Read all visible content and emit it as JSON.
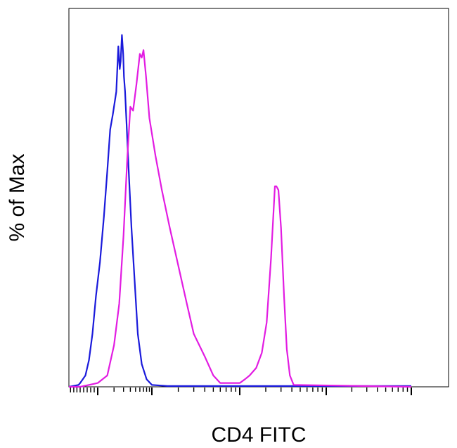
{
  "chart_data": {
    "type": "line",
    "title": "",
    "xlabel": "CD4 FITC",
    "ylabel": "% of Max",
    "x_scale": "log",
    "xlim": [
      -350,
      1000000
    ],
    "ylim": [
      0,
      100
    ],
    "grid": false,
    "legend": "none",
    "series": [
      {
        "color": "#1a1adb",
        "points": [
          [
            -350,
            0
          ],
          [
            -50,
            0.5
          ],
          [
            0,
            1
          ],
          [
            30,
            3
          ],
          [
            50,
            7
          ],
          [
            70,
            14
          ],
          [
            90,
            24
          ],
          [
            110,
            33
          ],
          [
            130,
            45
          ],
          [
            150,
            57
          ],
          [
            170,
            68
          ],
          [
            190,
            72
          ],
          [
            220,
            78
          ],
          [
            240,
            90
          ],
          [
            255,
            84
          ],
          [
            265,
            86
          ],
          [
            280,
            93
          ],
          [
            295,
            88
          ],
          [
            305,
            82
          ],
          [
            320,
            78
          ],
          [
            345,
            68
          ],
          [
            380,
            55
          ],
          [
            420,
            42
          ],
          [
            480,
            28
          ],
          [
            550,
            14
          ],
          [
            650,
            6
          ],
          [
            800,
            2
          ],
          [
            1000,
            0.5
          ],
          [
            1500,
            0.2
          ],
          [
            1000000,
            0.2
          ]
        ]
      },
      {
        "color": "#e21ce2",
        "points": [
          [
            -350,
            0
          ],
          [
            0,
            0
          ],
          [
            100,
            1
          ],
          [
            150,
            3
          ],
          [
            200,
            11
          ],
          [
            250,
            22
          ],
          [
            300,
            40
          ],
          [
            350,
            60
          ],
          [
            400,
            74
          ],
          [
            450,
            73
          ],
          [
            520,
            80
          ],
          [
            600,
            88
          ],
          [
            650,
            87
          ],
          [
            700,
            89
          ],
          [
            780,
            82
          ],
          [
            900,
            71
          ],
          [
            1100,
            61
          ],
          [
            1300,
            52
          ],
          [
            1600,
            42
          ],
          [
            2000,
            32
          ],
          [
            2500,
            22
          ],
          [
            3000,
            14
          ],
          [
            4000,
            8
          ],
          [
            5000,
            3
          ],
          [
            6000,
            1
          ],
          [
            8000,
            1
          ],
          [
            10000,
            1
          ],
          [
            11500,
            2
          ],
          [
            13000,
            3
          ],
          [
            15500,
            5
          ],
          [
            18000,
            9
          ],
          [
            20500,
            17
          ],
          [
            23000,
            34
          ],
          [
            25500,
            53
          ],
          [
            26500,
            53
          ],
          [
            28000,
            52
          ],
          [
            30000,
            42
          ],
          [
            32500,
            24
          ],
          [
            35000,
            10
          ],
          [
            38000,
            3
          ],
          [
            42000,
            0.5
          ],
          [
            1000000,
            0
          ]
        ]
      }
    ]
  }
}
